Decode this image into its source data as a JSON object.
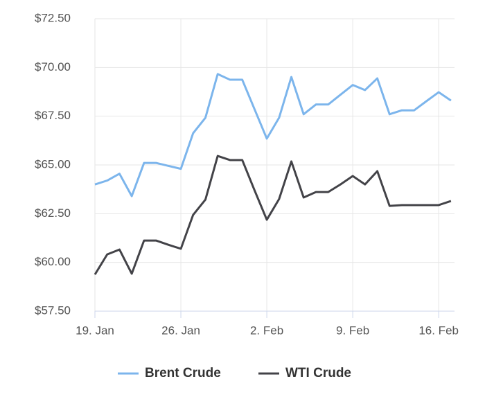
{
  "chart_data": {
    "type": "line",
    "x": [
      "19. Jan",
      "20. Jan",
      "21. Jan",
      "22. Jan",
      "23. Jan",
      "24. Jan",
      "25. Jan",
      "26. Jan",
      "27. Jan",
      "28. Jan",
      "29. Jan",
      "30. Jan",
      "31. Jan",
      "1. Feb",
      "2. Feb",
      "3. Feb",
      "4. Feb",
      "5. Feb",
      "6. Feb",
      "7. Feb",
      "8. Feb",
      "9. Feb",
      "10. Feb",
      "11. Feb",
      "12. Feb",
      "13. Feb",
      "14. Feb",
      "15. Feb",
      "16. Feb",
      "17. Feb"
    ],
    "xticks": [
      "19. Jan",
      "26. Jan",
      "2. Feb",
      "9. Feb",
      "16. Feb"
    ],
    "ylim": [
      57.5,
      72.5
    ],
    "yticks": [
      {
        "value": 57.5,
        "label": "$57.50"
      },
      {
        "value": 60,
        "label": "$60.00"
      },
      {
        "value": 62.5,
        "label": "$62.50"
      },
      {
        "value": 65,
        "label": "$65.00"
      },
      {
        "value": 67.5,
        "label": "$67.50"
      },
      {
        "value": 70,
        "label": "$70.00"
      },
      {
        "value": 72.5,
        "label": "$72.50"
      }
    ],
    "grid": true,
    "legend": "bottom",
    "series": [
      {
        "name": "Brent Crude",
        "color": "#7cb5ec",
        "values": [
          64.0,
          64.2,
          64.55,
          63.4,
          65.1,
          65.1,
          64.95,
          64.8,
          66.63,
          67.42,
          69.66,
          69.37,
          69.37,
          67.86,
          66.35,
          67.42,
          69.51,
          67.6,
          68.1,
          68.1,
          68.6,
          69.1,
          68.84,
          69.44,
          67.6,
          67.8,
          67.8,
          68.27,
          68.73,
          68.3
        ]
      },
      {
        "name": "WTI Crude",
        "color": "#434348",
        "values": [
          59.38,
          60.41,
          60.66,
          59.42,
          61.12,
          61.12,
          60.9,
          60.7,
          62.44,
          63.22,
          65.46,
          65.25,
          65.25,
          63.7,
          62.19,
          63.25,
          65.18,
          63.33,
          63.61,
          63.61,
          64.0,
          64.43,
          64.0,
          64.68,
          62.9,
          62.94,
          62.94,
          62.94,
          62.94,
          63.15
        ]
      }
    ]
  }
}
